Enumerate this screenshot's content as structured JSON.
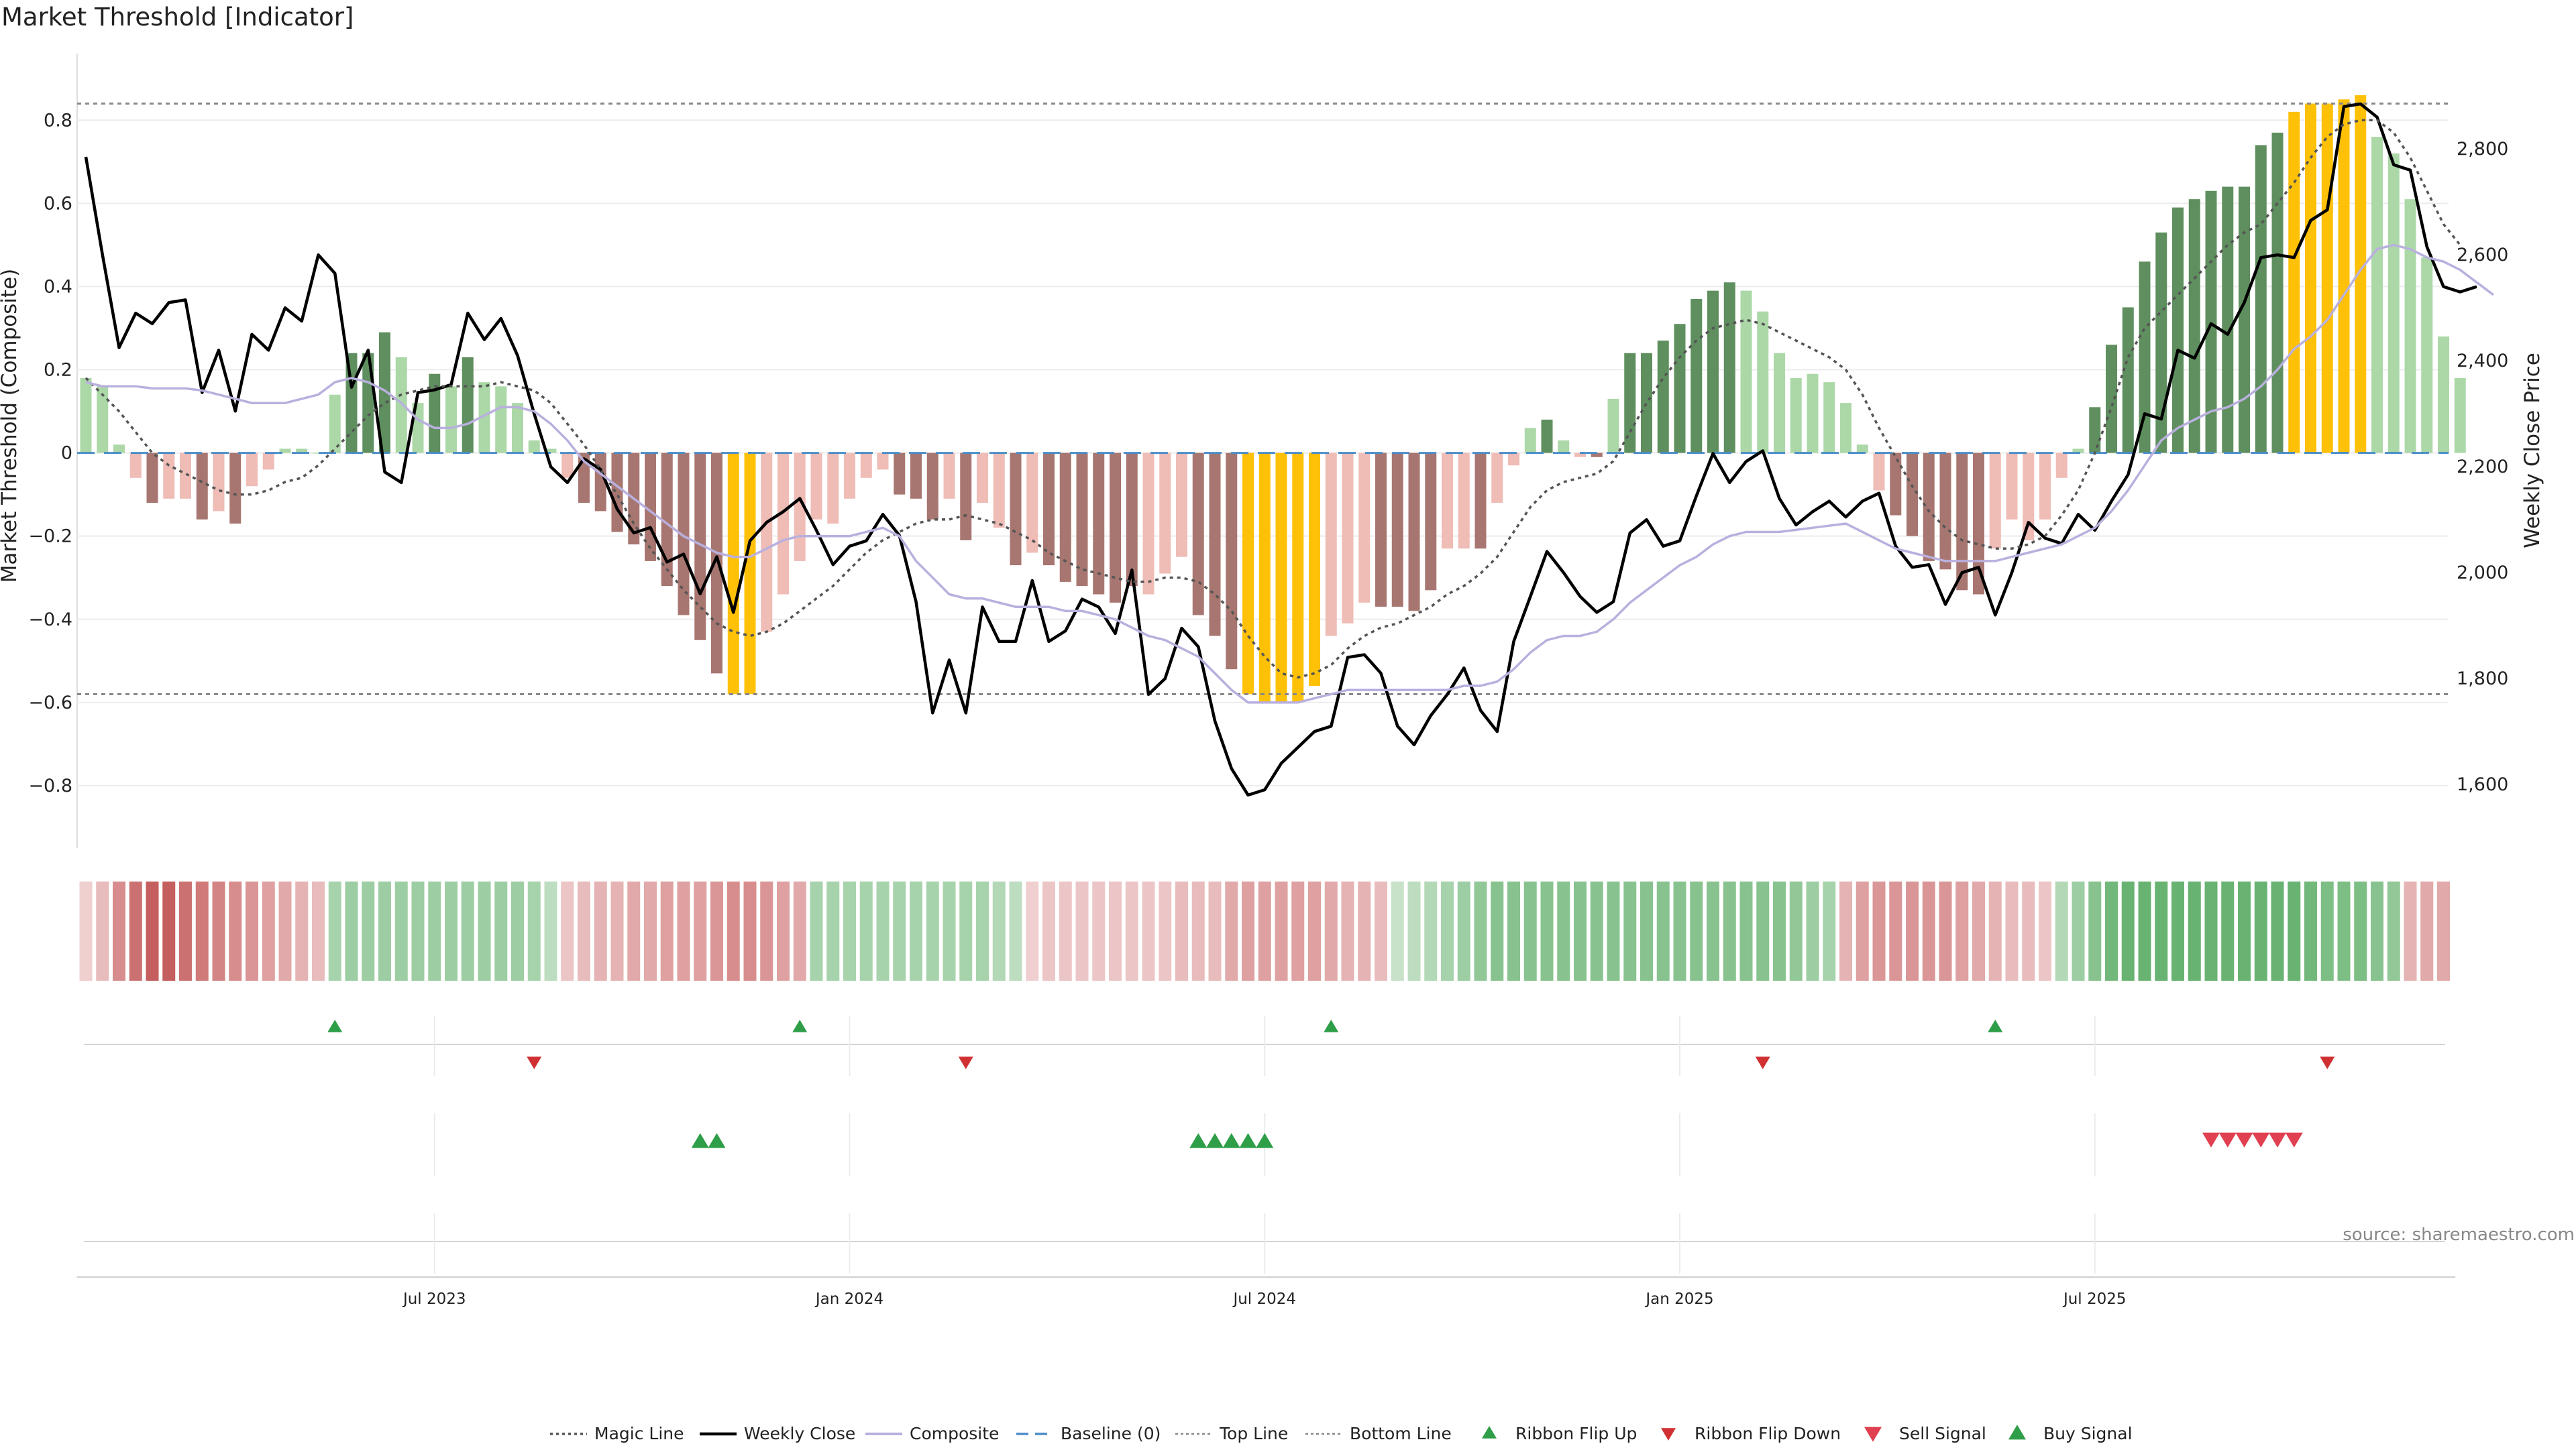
{
  "title": "Market Threshold [Indicator]",
  "source": "source: sharemaestro.com",
  "colors": {
    "magic": "#555555",
    "close": "#000000",
    "composite": "#b9b0de",
    "baseline": "#4a8cc7",
    "extreme": "#ffc107",
    "pos_strong": "#5f8f5f",
    "pos_weak": "#acd8a8",
    "neg_strong": "#a87670",
    "neg_weak": "#efbcb6",
    "flip_up": "#2e9e48",
    "flip_down": "#d03032",
    "sell": "#e0404f",
    "buy": "#2e9e48"
  },
  "chart_data": {
    "type": "bar",
    "title": "Market Threshold [Indicator]",
    "ylabel": "Market Threshold (Composite)",
    "y2label": "Weekly Close Price",
    "ylim": [
      -0.95,
      0.96
    ],
    "y2lim": [
      1480,
      2980
    ],
    "yticks": [
      0.8,
      0.6,
      0.4,
      0.2,
      0,
      -0.2,
      -0.4,
      -0.6,
      -0.8
    ],
    "ytick_labels": [
      "0.8",
      "0.6",
      "0.4",
      "0.2",
      "0",
      "−0.2",
      "−0.4",
      "−0.6",
      "−0.8"
    ],
    "y2ticks": [
      2800,
      2600,
      2400,
      2200,
      2000,
      1800,
      1600
    ],
    "y2tick_labels": [
      "2,800",
      "2,600",
      "2,400",
      "2,200",
      "2,000",
      "1,800",
      "1,600"
    ],
    "xticks": [
      21,
      46,
      71,
      96,
      121
    ],
    "xtick_labels": [
      "Jul 2023",
      "Jan 2024",
      "Jul 2024",
      "Jan 2025",
      "Jul 2025"
    ],
    "top_line": 0.84,
    "bottom_line": -0.58,
    "composite_bars": [
      0.18,
      0.16,
      0.02,
      -0.06,
      -0.12,
      -0.11,
      -0.11,
      -0.16,
      -0.14,
      -0.17,
      -0.08,
      -0.04,
      0.01,
      0.01,
      0.0,
      0.14,
      0.24,
      0.24,
      0.29,
      0.23,
      0.12,
      0.19,
      0.16,
      0.23,
      0.17,
      0.16,
      0.12,
      0.03,
      0.01,
      -0.06,
      -0.12,
      -0.14,
      -0.19,
      -0.22,
      -0.26,
      -0.32,
      -0.39,
      -0.45,
      -0.53,
      -0.58,
      -0.58,
      -0.43,
      -0.34,
      -0.26,
      -0.16,
      -0.17,
      -0.11,
      -0.06,
      -0.04,
      -0.1,
      -0.11,
      -0.16,
      -0.11,
      -0.21,
      -0.12,
      -0.18,
      -0.27,
      -0.24,
      -0.27,
      -0.31,
      -0.32,
      -0.34,
      -0.36,
      -0.32,
      -0.34,
      -0.29,
      -0.25,
      -0.39,
      -0.44,
      -0.52,
      -0.58,
      -0.6,
      -0.6,
      -0.6,
      -0.56,
      -0.44,
      -0.41,
      -0.36,
      -0.37,
      -0.37,
      -0.38,
      -0.33,
      -0.23,
      -0.23,
      -0.23,
      -0.12,
      -0.03,
      0.06,
      0.08,
      0.03,
      -0.01,
      -0.01,
      0.13,
      0.24,
      0.24,
      0.27,
      0.31,
      0.37,
      0.39,
      0.41,
      0.39,
      0.34,
      0.24,
      0.18,
      0.19,
      0.17,
      0.12,
      0.02,
      -0.09,
      -0.15,
      -0.2,
      -0.26,
      -0.28,
      -0.33,
      -0.34,
      -0.23,
      -0.16,
      -0.21,
      -0.16,
      -0.06,
      0.01,
      0.11,
      0.26,
      0.35,
      0.46,
      0.53,
      0.59,
      0.61,
      0.63,
      0.64,
      0.64,
      0.74,
      0.77,
      0.82,
      0.84,
      0.84,
      0.85,
      0.86,
      0.76,
      0.72,
      0.61,
      0.47,
      0.28,
      0.18
    ],
    "bar_classes": [
      "pw",
      "pw",
      "pw",
      "nw",
      "ns",
      "nw",
      "nw",
      "ns",
      "nw",
      "ns",
      "nw",
      "nw",
      "pw",
      "pw",
      "pw",
      "pw",
      "ps",
      "ps",
      "ps",
      "pw",
      "pw",
      "ps",
      "pw",
      "ps",
      "pw",
      "pw",
      "pw",
      "pw",
      "pw",
      "nw",
      "ns",
      "ns",
      "ns",
      "ns",
      "ns",
      "ns",
      "ns",
      "ns",
      "ns",
      "ex",
      "ex",
      "nw",
      "nw",
      "nw",
      "nw",
      "nw",
      "nw",
      "nw",
      "nw",
      "ns",
      "ns",
      "ns",
      "nw",
      "ns",
      "nw",
      "nw",
      "ns",
      "nw",
      "ns",
      "ns",
      "ns",
      "ns",
      "ns",
      "ns",
      "nw",
      "nw",
      "nw",
      "ns",
      "ns",
      "ns",
      "ex",
      "ex",
      "ex",
      "ex",
      "ex",
      "nw",
      "nw",
      "nw",
      "ns",
      "ns",
      "ns",
      "ns",
      "nw",
      "nw",
      "ns",
      "nw",
      "nw",
      "pw",
      "ps",
      "pw",
      "nw",
      "ns",
      "pw",
      "ps",
      "ps",
      "ps",
      "ps",
      "ps",
      "ps",
      "ps",
      "pw",
      "pw",
      "pw",
      "pw",
      "pw",
      "pw",
      "pw",
      "pw",
      "nw",
      "ns",
      "ns",
      "ns",
      "ns",
      "ns",
      "ns",
      "nw",
      "nw",
      "nw",
      "nw",
      "nw",
      "pw",
      "ps",
      "ps",
      "ps",
      "ps",
      "ps",
      "ps",
      "ps",
      "ps",
      "ps",
      "ps",
      "ps",
      "ps",
      "ex",
      "ex",
      "ex",
      "ex",
      "ex",
      "pw",
      "pw",
      "pw",
      "pw",
      "pw",
      "pw"
    ],
    "series": [
      {
        "name": "Weekly Close",
        "axis": "right",
        "values": [
          2785,
          2600,
          2425,
          2490,
          2470,
          2510,
          2515,
          2340,
          2420,
          2305,
          2450,
          2420,
          2500,
          2475,
          2600,
          2565,
          2350,
          2420,
          2190,
          2170,
          2340,
          2345,
          2355,
          2490,
          2440,
          2480,
          2410,
          2300,
          2200,
          2170,
          2215,
          2195,
          2120,
          2075,
          2085,
          2020,
          2035,
          1960,
          2030,
          1925,
          2060,
          2095,
          2115,
          2140,
          2080,
          2015,
          2050,
          2060,
          2110,
          2070,
          1945,
          1735,
          1835,
          1735,
          1935,
          1870,
          1870,
          1985,
          1870,
          1890,
          1950,
          1935,
          1885,
          2005,
          1770,
          1800,
          1895,
          1860,
          1720,
          1630,
          1580,
          1590,
          1640,
          1670,
          1700,
          1710,
          1840,
          1845,
          1810,
          1710,
          1675,
          1730,
          1770,
          1820,
          1740,
          1700,
          1870,
          1955,
          2040,
          2000,
          1955,
          1925,
          1945,
          2075,
          2100,
          2050,
          2060,
          2145,
          2225,
          2170,
          2210,
          2230,
          2140,
          2090,
          2115,
          2135,
          2105,
          2135,
          2150,
          2050,
          2010,
          2015,
          1940,
          2000,
          2010,
          1920,
          2000,
          2095,
          2065,
          2055,
          2110,
          2080,
          2135,
          2185,
          2300,
          2290,
          2420,
          2405,
          2470,
          2450,
          2510,
          2595,
          2600,
          2595,
          2665,
          2685,
          2880,
          2885,
          2860,
          2770,
          2760,
          2615,
          2540,
          2530,
          2540
        ]
      },
      {
        "name": "Magic Line",
        "axis": "left",
        "values": [
          0.18,
          0.14,
          0.1,
          0.05,
          0.0,
          -0.03,
          -0.05,
          -0.07,
          -0.09,
          -0.1,
          -0.1,
          -0.09,
          -0.07,
          -0.06,
          -0.03,
          0.01,
          0.05,
          0.09,
          0.12,
          0.14,
          0.15,
          0.16,
          0.16,
          0.16,
          0.16,
          0.17,
          0.16,
          0.15,
          0.12,
          0.07,
          0.02,
          -0.04,
          -0.1,
          -0.17,
          -0.23,
          -0.28,
          -0.33,
          -0.37,
          -0.41,
          -0.43,
          -0.44,
          -0.43,
          -0.41,
          -0.38,
          -0.35,
          -0.32,
          -0.28,
          -0.24,
          -0.21,
          -0.19,
          -0.17,
          -0.16,
          -0.16,
          -0.15,
          -0.16,
          -0.17,
          -0.19,
          -0.21,
          -0.24,
          -0.26,
          -0.28,
          -0.29,
          -0.3,
          -0.31,
          -0.31,
          -0.3,
          -0.3,
          -0.31,
          -0.34,
          -0.38,
          -0.44,
          -0.49,
          -0.53,
          -0.54,
          -0.53,
          -0.51,
          -0.47,
          -0.44,
          -0.42,
          -0.41,
          -0.39,
          -0.37,
          -0.34,
          -0.32,
          -0.29,
          -0.25,
          -0.19,
          -0.13,
          -0.09,
          -0.07,
          -0.06,
          -0.05,
          -0.02,
          0.05,
          0.12,
          0.18,
          0.23,
          0.27,
          0.3,
          0.31,
          0.32,
          0.31,
          0.29,
          0.27,
          0.25,
          0.23,
          0.2,
          0.14,
          0.06,
          -0.01,
          -0.08,
          -0.14,
          -0.18,
          -0.21,
          -0.22,
          -0.23,
          -0.23,
          -0.22,
          -0.2,
          -0.15,
          -0.09,
          0.0,
          0.11,
          0.23,
          0.3,
          0.34,
          0.38,
          0.42,
          0.46,
          0.5,
          0.53,
          0.55,
          0.6,
          0.65,
          0.71,
          0.76,
          0.79,
          0.8,
          0.8,
          0.77,
          0.71,
          0.63,
          0.55,
          0.5
        ]
      },
      {
        "name": "Composite",
        "axis": "left",
        "values": [
          0.17,
          0.16,
          0.16,
          0.16,
          0.155,
          0.155,
          0.155,
          0.15,
          0.14,
          0.13,
          0.12,
          0.12,
          0.12,
          0.13,
          0.14,
          0.17,
          0.18,
          0.17,
          0.15,
          0.12,
          0.08,
          0.06,
          0.06,
          0.07,
          0.09,
          0.11,
          0.11,
          0.1,
          0.07,
          0.03,
          -0.02,
          -0.05,
          -0.08,
          -0.11,
          -0.14,
          -0.17,
          -0.2,
          -0.22,
          -0.24,
          -0.25,
          -0.25,
          -0.23,
          -0.21,
          -0.2,
          -0.2,
          -0.2,
          -0.2,
          -0.19,
          -0.18,
          -0.2,
          -0.26,
          -0.3,
          -0.34,
          -0.35,
          -0.35,
          -0.36,
          -0.37,
          -0.37,
          -0.37,
          -0.38,
          -0.38,
          -0.39,
          -0.4,
          -0.42,
          -0.44,
          -0.45,
          -0.47,
          -0.49,
          -0.53,
          -0.57,
          -0.6,
          -0.6,
          -0.6,
          -0.6,
          -0.59,
          -0.58,
          -0.57,
          -0.57,
          -0.57,
          -0.57,
          -0.57,
          -0.57,
          -0.57,
          -0.56,
          -0.56,
          -0.55,
          -0.52,
          -0.48,
          -0.45,
          -0.44,
          -0.44,
          -0.43,
          -0.4,
          -0.36,
          -0.33,
          -0.3,
          -0.27,
          -0.25,
          -0.22,
          -0.2,
          -0.19,
          -0.19,
          -0.19,
          -0.185,
          -0.18,
          -0.175,
          -0.17,
          -0.19,
          -0.21,
          -0.23,
          -0.24,
          -0.25,
          -0.26,
          -0.26,
          -0.26,
          -0.26,
          -0.25,
          -0.24,
          -0.23,
          -0.22,
          -0.2,
          -0.18,
          -0.14,
          -0.09,
          -0.03,
          0.03,
          0.06,
          0.08,
          0.1,
          0.11,
          0.13,
          0.16,
          0.2,
          0.25,
          0.28,
          0.32,
          0.38,
          0.44,
          0.49,
          0.5,
          0.49,
          0.47,
          0.46,
          0.44,
          0.41,
          0.38
        ]
      }
    ],
    "ribbon": {
      "values": [
        -0.1,
        -0.2,
        -0.45,
        -0.6,
        -0.7,
        -0.7,
        -0.6,
        -0.55,
        -0.5,
        -0.45,
        -0.4,
        -0.35,
        -0.3,
        -0.25,
        -0.2,
        0.3,
        0.35,
        0.35,
        0.35,
        0.35,
        0.35,
        0.35,
        0.35,
        0.35,
        0.35,
        0.35,
        0.35,
        0.3,
        0.2,
        -0.15,
        -0.2,
        -0.25,
        -0.25,
        -0.3,
        -0.3,
        -0.35,
        -0.35,
        -0.35,
        -0.4,
        -0.45,
        -0.45,
        -0.4,
        -0.35,
        -0.3,
        0.3,
        0.3,
        0.3,
        0.3,
        0.3,
        0.3,
        0.3,
        0.3,
        0.3,
        0.3,
        0.3,
        0.25,
        0.2,
        -0.1,
        -0.15,
        -0.15,
        -0.15,
        -0.15,
        -0.15,
        -0.15,
        -0.15,
        -0.15,
        -0.2,
        -0.2,
        -0.2,
        -0.3,
        -0.35,
        -0.35,
        -0.35,
        -0.35,
        -0.35,
        -0.3,
        -0.25,
        -0.25,
        -0.2,
        0.15,
        0.2,
        0.25,
        0.3,
        0.35,
        0.4,
        0.45,
        0.45,
        0.45,
        0.45,
        0.45,
        0.45,
        0.45,
        0.45,
        0.45,
        0.45,
        0.45,
        0.45,
        0.45,
        0.45,
        0.45,
        0.45,
        0.45,
        0.45,
        0.4,
        0.35,
        0.3,
        -0.25,
        -0.35,
        -0.4,
        -0.4,
        -0.4,
        -0.4,
        -0.4,
        -0.35,
        -0.3,
        -0.25,
        -0.2,
        -0.2,
        -0.15,
        0.25,
        0.35,
        0.45,
        0.55,
        0.6,
        0.6,
        0.6,
        0.6,
        0.6,
        0.6,
        0.6,
        0.6,
        0.6,
        0.6,
        0.6,
        0.55,
        0.5,
        0.5,
        0.5,
        0.45,
        0.4,
        -0.25,
        -0.3,
        -0.3
      ]
    },
    "ribbon_flip_up": [
      15,
      43,
      75,
      115
    ],
    "ribbon_flip_down": [
      27,
      53,
      101,
      135
    ],
    "buy_signal": [
      37,
      38,
      67,
      68,
      69,
      70,
      71
    ],
    "sell_signal": [
      128,
      129,
      130,
      131,
      132,
      133
    ]
  },
  "legend": [
    {
      "label": "Magic Line",
      "kind": "dotted"
    },
    {
      "label": "Weekly Close",
      "kind": "solid"
    },
    {
      "label": "Composite",
      "kind": "composite"
    },
    {
      "label": "Baseline (0)",
      "kind": "dashed"
    },
    {
      "label": "Top Line",
      "kind": "thin-dotted"
    },
    {
      "label": "Bottom Line",
      "kind": "thin-dotted"
    },
    {
      "label": "Ribbon Flip Up",
      "kind": "tri-up-green"
    },
    {
      "label": "Ribbon Flip Down",
      "kind": "tri-down-red"
    },
    {
      "label": "Sell Signal",
      "kind": "tri-down-sell"
    },
    {
      "label": "Buy Signal",
      "kind": "tri-up-buy"
    }
  ]
}
